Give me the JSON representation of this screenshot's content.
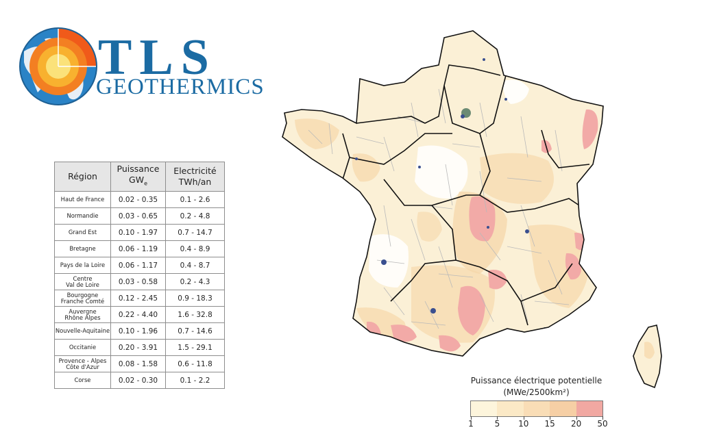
{
  "logo": {
    "word": "TLS",
    "subtitle": "GEOTHERMICS",
    "brand_color": "#1b6ba3",
    "ring_colors": [
      "#f05a1a",
      "#f37f22",
      "#f8b12f",
      "#fbe27a"
    ]
  },
  "table": {
    "headers": {
      "region": "Région",
      "power": "Puissance",
      "power_unit": "GW",
      "power_unit_sub": "e",
      "elec": "Electricité",
      "elec_unit": "TWh/an"
    },
    "rows": [
      {
        "region": "Haut de France",
        "power": "0.02 - 0.35",
        "elec": "0.1 -  2.6"
      },
      {
        "region": "Normandie",
        "power": "0.03 - 0.65",
        "elec": "0.2 -  4.8"
      },
      {
        "region": "Grand Est",
        "power": "0.10 - 1.97",
        "elec": "0.7 - 14.7"
      },
      {
        "region": "Bretagne",
        "power": "0.06 - 1.19",
        "elec": "0.4 -  8.9"
      },
      {
        "region": "Pays de la Loire",
        "power": "0.06 - 1.17",
        "elec": "0.4 -  8.7"
      },
      {
        "region": "Centre Val de Loire",
        "region_l1": "Centre",
        "region_l2": "Val de Loire",
        "power": "0.03 - 0.58",
        "elec": "0.2 -  4.3"
      },
      {
        "region": "Bourgogne Franche Comté",
        "region_l1": "Bourgogne",
        "region_l2": "Franche Comté",
        "power": "0.12 - 2.45",
        "elec": "0.9 - 18.3"
      },
      {
        "region": "Auvergne Rhône Alpes",
        "region_l1": "Auvergne",
        "region_l2": "Rhône Alpes",
        "power": "0.22 - 4.40",
        "elec": "1.6 - 32.8"
      },
      {
        "region": "Nouvelle-Aquitaine",
        "power": "0.10 - 1.96",
        "elec": "0.7 - 14.6"
      },
      {
        "region": "Occitanie",
        "power": "0.20 - 3.91",
        "elec": "1.5 - 29.1"
      },
      {
        "region": "Provence - Alpes Côte d'Azur",
        "region_l1": "Provence - Alpes",
        "region_l2": "Côte d'Azur",
        "power": "0.08 - 1.58",
        "elec": "0.6 - 11.8"
      },
      {
        "region": "Corse",
        "power": "0.02 - 0.30",
        "elec": "0.1 -  2.2"
      }
    ]
  },
  "legend": {
    "title_line1": "Puissance électrique potentielle",
    "title_line2": "(MWe/2500km²)",
    "ticks": [
      "1",
      "5",
      "10",
      "15",
      "20",
      "50"
    ],
    "colors": [
      "#fdf5dc",
      "#fbe9c6",
      "#f9ddb6",
      "#f6cfa5",
      "#f1a8a2"
    ]
  },
  "map": {
    "base_color": "#fbf0d6",
    "low_color": "#ffffff",
    "mid_color": "#f6d7a9",
    "high_color": "#f2aaa7",
    "border_color": "#111111",
    "inner_border_color": "#b9b9b9",
    "urban_color": "#3a4f8f"
  }
}
